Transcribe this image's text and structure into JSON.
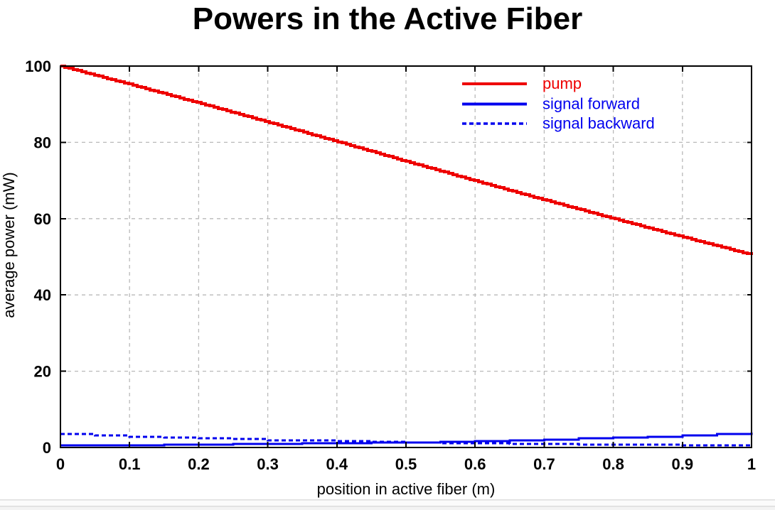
{
  "chart_data": {
    "type": "line",
    "title": "Powers in the Active Fiber",
    "xlabel": "position in active fiber (m)",
    "ylabel": "average power (mW)",
    "xlim": [
      0,
      1
    ],
    "ylim": [
      0,
      100
    ],
    "x_ticks": [
      0,
      0.1,
      0.2,
      0.3,
      0.4,
      0.5,
      0.6,
      0.7,
      0.8,
      0.9,
      1
    ],
    "x_tick_labels": [
      "0",
      "0.1",
      "0.2",
      "0.3",
      "0.4",
      "0.5",
      "0.6",
      "0.7",
      "0.8",
      "0.9",
      "1"
    ],
    "y_ticks": [
      0,
      20,
      40,
      60,
      80,
      100
    ],
    "y_tick_labels": [
      "0",
      "20",
      "40",
      "60",
      "80",
      "100"
    ],
    "grid": true,
    "grid_style": "dashed",
    "legend_position": "top-right",
    "series": [
      {
        "name": "pump",
        "color": "#ee0000",
        "style": "solid",
        "render": "smooth",
        "x": [
          0,
          0.1,
          0.2,
          0.3,
          0.4,
          0.5,
          0.6,
          0.7,
          0.8,
          0.9,
          1.0
        ],
        "values": [
          100,
          95.2,
          90.3,
          85.3,
          80.2,
          75.0,
          69.9,
          64.9,
          60.0,
          55.2,
          50.5
        ]
      },
      {
        "name": "signal forward",
        "color": "#0000ee",
        "style": "solid",
        "render": "step",
        "x": [
          0,
          0.05,
          0.1,
          0.15,
          0.2,
          0.25,
          0.3,
          0.35,
          0.4,
          0.45,
          0.5,
          0.55,
          0.6,
          0.65,
          0.7,
          0.75,
          0.8,
          0.85,
          0.9,
          0.95,
          1.0
        ],
        "values": [
          0.5,
          0.55,
          0.61,
          0.68,
          0.75,
          0.84,
          0.93,
          1.03,
          1.14,
          1.26,
          1.39,
          1.55,
          1.71,
          1.9,
          2.1,
          2.33,
          2.58,
          2.86,
          3.17,
          3.51,
          3.89
        ]
      },
      {
        "name": "signal backward",
        "color": "#0000ee",
        "style": "dashed",
        "render": "step",
        "x": [
          0,
          0.05,
          0.1,
          0.15,
          0.2,
          0.25,
          0.3,
          0.35,
          0.4,
          0.45,
          0.5,
          0.55,
          0.6,
          0.65,
          0.7,
          0.75,
          0.8,
          0.85,
          0.9,
          0.95,
          1.0
        ],
        "values": [
          3.5,
          3.18,
          2.88,
          2.61,
          2.37,
          2.15,
          1.95,
          1.77,
          1.6,
          1.46,
          1.32,
          1.2,
          1.09,
          0.99,
          0.89,
          0.81,
          0.74,
          0.67,
          0.61,
          0.55,
          0.5
        ]
      }
    ],
    "colors": {
      "axis": "#000000",
      "grid": "#b9b9b9",
      "background": "#ffffff",
      "pump": "#ee0000",
      "signal": "#0000ee"
    }
  }
}
